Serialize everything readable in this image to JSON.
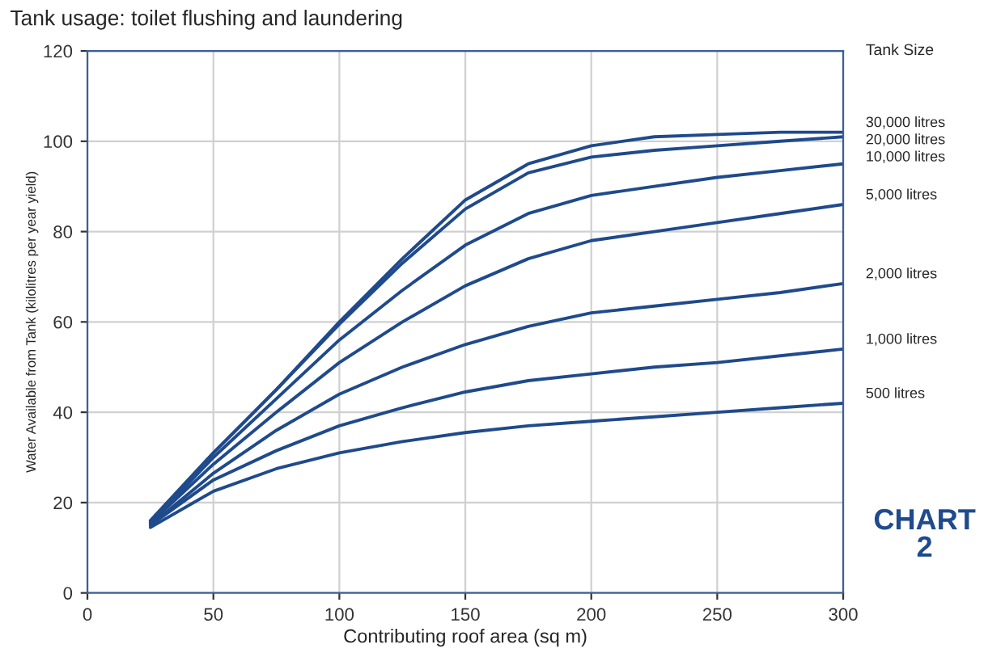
{
  "chart_data": {
    "type": "line",
    "title": "Tank usage: toilet flushing and laundering",
    "xlabel": "Contributing roof area (sq m)",
    "ylabel": "Water Available from Tank (kilolitres per year yield)",
    "legend_title": "Tank Size",
    "x": [
      25,
      50,
      75,
      100,
      125,
      150,
      175,
      200,
      225,
      250,
      275,
      300
    ],
    "series": [
      {
        "name": "30,000 litres",
        "color": "#1f4a8c",
        "values": [
          16,
          31,
          45,
          60,
          74,
          87,
          95,
          99,
          101,
          101.5,
          102,
          102
        ]
      },
      {
        "name": "20,000 litres",
        "color": "#1f4a8c",
        "values": [
          16,
          31,
          45,
          59.5,
          73,
          85,
          93,
          96.5,
          98,
          99,
          100,
          101
        ]
      },
      {
        "name": "10,000 litres",
        "color": "#1f4a8c",
        "values": [
          15.5,
          30,
          43,
          56,
          67,
          77,
          84,
          88,
          90,
          92,
          93.5,
          95
        ]
      },
      {
        "name": "5,000 litres",
        "color": "#1f4a8c",
        "values": [
          15.5,
          28.5,
          40,
          51,
          60,
          68,
          74,
          78,
          80,
          82,
          84,
          86
        ]
      },
      {
        "name": "2,000 litres",
        "color": "#1f4a8c",
        "values": [
          15,
          26.5,
          36,
          44,
          50,
          55,
          59,
          62,
          63.5,
          65,
          66.5,
          68.5
        ]
      },
      {
        "name": "1,000 litres",
        "color": "#1f4a8c",
        "values": [
          15,
          25,
          31.5,
          37,
          41,
          44.5,
          47,
          48.5,
          50,
          51,
          52.5,
          54
        ]
      },
      {
        "name": "500 litres",
        "color": "#1f4a8c",
        "values": [
          14.5,
          22.5,
          27.5,
          31,
          33.5,
          35.5,
          37,
          38,
          39,
          40,
          41,
          42
        ]
      }
    ],
    "xlim": [
      0,
      300
    ],
    "xticks": [
      0,
      50,
      100,
      150,
      200,
      250,
      300
    ],
    "ylim": [
      0,
      120
    ],
    "yticks": [
      0,
      20,
      40,
      60,
      80,
      100,
      120
    ],
    "grid": true,
    "legend": "right",
    "marker": "none",
    "line_style": "solid",
    "annotations": [
      "CHART 2"
    ]
  }
}
